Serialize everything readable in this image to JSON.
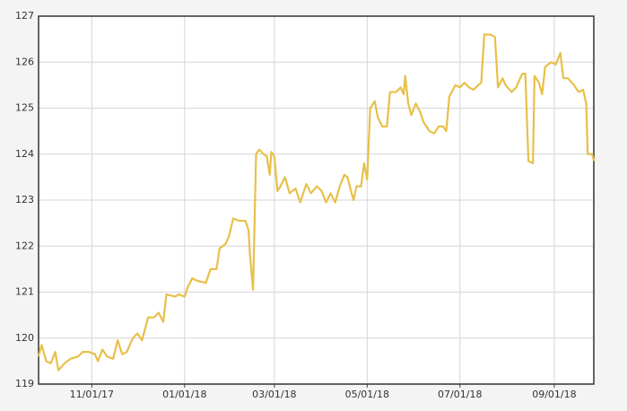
{
  "chart_data": {
    "type": "line",
    "x": [
      "2017-09-27",
      "2017-09-29",
      "2017-10-02",
      "2017-10-05",
      "2017-10-08",
      "2017-10-10",
      "2017-10-14",
      "2017-10-18",
      "2017-10-23",
      "2017-10-26",
      "2017-10-30",
      "2017-11-03",
      "2017-11-05",
      "2017-11-08",
      "2017-11-11",
      "2017-11-15",
      "2017-11-18",
      "2017-11-21",
      "2017-11-24",
      "2017-11-28",
      "2017-12-01",
      "2017-12-04",
      "2017-12-08",
      "2017-12-12",
      "2017-12-15",
      "2017-12-18",
      "2017-12-20",
      "2017-12-26",
      "2017-12-28",
      "2018-01-01",
      "2018-01-03",
      "2018-01-06",
      "2018-01-09",
      "2018-01-15",
      "2018-01-18",
      "2018-01-22",
      "2018-01-24",
      "2018-01-28",
      "2018-01-30",
      "2018-02-02",
      "2018-02-06",
      "2018-02-10",
      "2018-02-12",
      "2018-02-13",
      "2018-02-15",
      "2018-02-17",
      "2018-02-19",
      "2018-02-22",
      "2018-02-24",
      "2018-02-26",
      "2018-02-27",
      "2018-03-01",
      "2018-03-03",
      "2018-03-05",
      "2018-03-08",
      "2018-03-11",
      "2018-03-15",
      "2018-03-18",
      "2018-03-22",
      "2018-03-25",
      "2018-03-29",
      "2018-04-01",
      "2018-04-04",
      "2018-04-07",
      "2018-04-10",
      "2018-04-13",
      "2018-04-16",
      "2018-04-18",
      "2018-04-22",
      "2018-04-24",
      "2018-04-27",
      "2018-04-29",
      "2018-05-01",
      "2018-05-03",
      "2018-05-06",
      "2018-05-08",
      "2018-05-11",
      "2018-05-14",
      "2018-05-16",
      "2018-05-20",
      "2018-05-23",
      "2018-05-25",
      "2018-05-26",
      "2018-05-28",
      "2018-05-30",
      "2018-06-02",
      "2018-06-05",
      "2018-06-07",
      "2018-06-11",
      "2018-06-14",
      "2018-06-17",
      "2018-06-20",
      "2018-06-22",
      "2018-06-24",
      "2018-06-28",
      "2018-07-01",
      "2018-07-04",
      "2018-07-07",
      "2018-07-10",
      "2018-07-13",
      "2018-07-15",
      "2018-07-17",
      "2018-07-21",
      "2018-07-24",
      "2018-07-26",
      "2018-07-29",
      "2018-07-31",
      "2018-08-04",
      "2018-08-07",
      "2018-08-11",
      "2018-08-13",
      "2018-08-15",
      "2018-08-18",
      "2018-08-19",
      "2018-08-22",
      "2018-08-24",
      "2018-08-26",
      "2018-08-30",
      "2018-09-02",
      "2018-09-05",
      "2018-09-07",
      "2018-09-10",
      "2018-09-14",
      "2018-09-17",
      "2018-09-20",
      "2018-09-22",
      "2018-09-23",
      "2018-09-26",
      "2018-09-27"
    ],
    "series": [
      {
        "color": "#e8c04a",
        "values": [
          119.6,
          119.85,
          119.5,
          119.45,
          119.7,
          119.3,
          119.45,
          119.55,
          119.6,
          119.7,
          119.7,
          119.65,
          119.5,
          119.75,
          119.6,
          119.55,
          119.95,
          119.65,
          119.7,
          120.0,
          120.1,
          119.95,
          120.45,
          120.45,
          120.55,
          120.35,
          120.95,
          120.9,
          120.95,
          120.9,
          121.1,
          121.3,
          121.25,
          121.2,
          121.5,
          121.5,
          121.95,
          122.05,
          122.2,
          122.6,
          122.55,
          122.55,
          122.35,
          121.8,
          121.05,
          124.0,
          124.1,
          124.0,
          123.95,
          123.55,
          124.05,
          123.95,
          123.2,
          123.3,
          123.5,
          123.15,
          123.25,
          122.95,
          123.35,
          123.15,
          123.3,
          123.2,
          122.95,
          123.15,
          122.95,
          123.3,
          123.55,
          123.5,
          123.0,
          123.3,
          123.3,
          123.8,
          123.45,
          125.0,
          125.15,
          124.8,
          124.6,
          124.6,
          125.35,
          125.35,
          125.45,
          125.3,
          125.7,
          125.1,
          124.85,
          125.1,
          124.9,
          124.7,
          124.5,
          124.45,
          124.6,
          124.6,
          124.5,
          125.25,
          125.5,
          125.45,
          125.55,
          125.45,
          125.4,
          125.5,
          125.55,
          126.6,
          126.6,
          126.55,
          125.45,
          125.65,
          125.5,
          125.35,
          125.45,
          125.75,
          125.75,
          123.85,
          123.8,
          125.7,
          125.55,
          125.3,
          125.9,
          126.0,
          125.95,
          126.2,
          125.65,
          125.65,
          125.5,
          125.35,
          125.4,
          125.1,
          124.0,
          124.0,
          123.85
        ]
      }
    ],
    "xlim": [
      "2017-09-27",
      "2018-09-27"
    ],
    "xticks": [
      {
        "value": "2017-11-01",
        "label": "11/01/17"
      },
      {
        "value": "2018-01-01",
        "label": "01/01/18"
      },
      {
        "value": "2018-03-01",
        "label": "03/01/18"
      },
      {
        "value": "2018-05-01",
        "label": "05/01/18"
      },
      {
        "value": "2018-07-01",
        "label": "07/01/18"
      },
      {
        "value": "2018-09-01",
        "label": "09/01/18"
      }
    ],
    "ylim": [
      119,
      127
    ],
    "yticks": [
      119,
      120,
      121,
      122,
      123,
      124,
      125,
      126,
      127
    ],
    "grid": true
  }
}
